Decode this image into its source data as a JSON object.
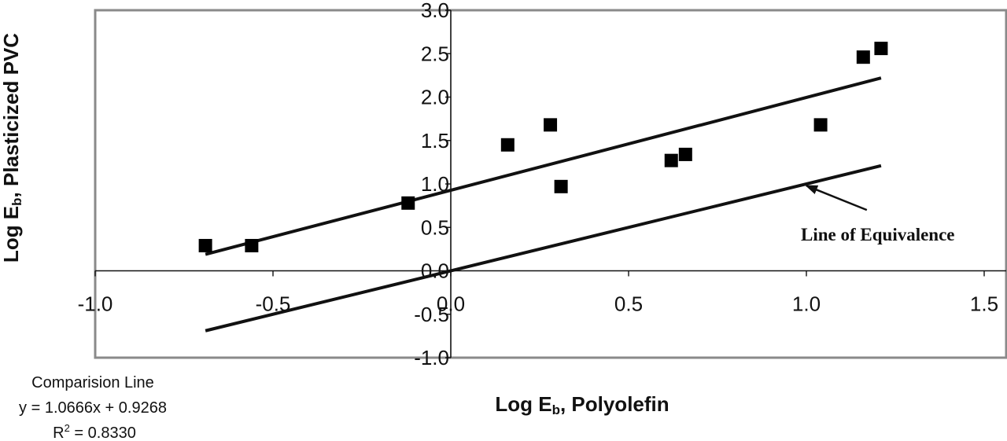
{
  "chart_data": {
    "type": "scatter",
    "xlabel_main": "Log E",
    "xlabel_sub": "b",
    "xlabel_rest": ", Polyolefin",
    "ylabel_main": "Log E",
    "ylabel_sub": "b",
    "ylabel_rest": ", Plasticized PVC",
    "xlim": [
      -1.0,
      1.5
    ],
    "ylim": [
      -1.0,
      3.0
    ],
    "x_ticks": [
      -1.0,
      -0.5,
      0.0,
      0.5,
      1.0,
      1.5
    ],
    "y_ticks": [
      -1.0,
      -0.5,
      0.0,
      0.5,
      1.0,
      1.5,
      2.0,
      2.5,
      3.0
    ],
    "x_tick_labels": [
      "-1.0",
      "-0.5",
      "0.0",
      "0.5",
      "1.0",
      "1.5"
    ],
    "y_tick_labels": [
      "-1.0",
      "-0.5",
      "0.0",
      "0.5",
      "1.0",
      "1.5",
      "2.0",
      "2.5",
      "3.0"
    ],
    "points": {
      "x": [
        -0.69,
        -0.56,
        -0.12,
        0.16,
        0.28,
        0.31,
        0.62,
        0.66,
        1.04,
        1.16,
        1.21
      ],
      "y": [
        0.29,
        0.29,
        0.78,
        1.45,
        1.68,
        0.97,
        1.27,
        1.34,
        1.68,
        2.46,
        2.56
      ]
    },
    "lines": [
      {
        "x": [
          -0.69,
          1.21
        ],
        "y": [
          0.19,
          2.22
        ]
      },
      {
        "x": [
          -0.69,
          1.21
        ],
        "y": [
          -0.69,
          1.21
        ]
      }
    ],
    "annotation": {
      "text": "Line of Equivalence",
      "arrow_from": [
        1.17,
        0.7
      ],
      "arrow_to": [
        1.0,
        0.98
      ]
    },
    "equation": {
      "line1": "Comparision Line",
      "line2": "y = 1.0666x + 0.9268",
      "line3_main": "R",
      "line3_sup": "2",
      "line3_rest": " = 0.8330"
    },
    "grid": false
  }
}
